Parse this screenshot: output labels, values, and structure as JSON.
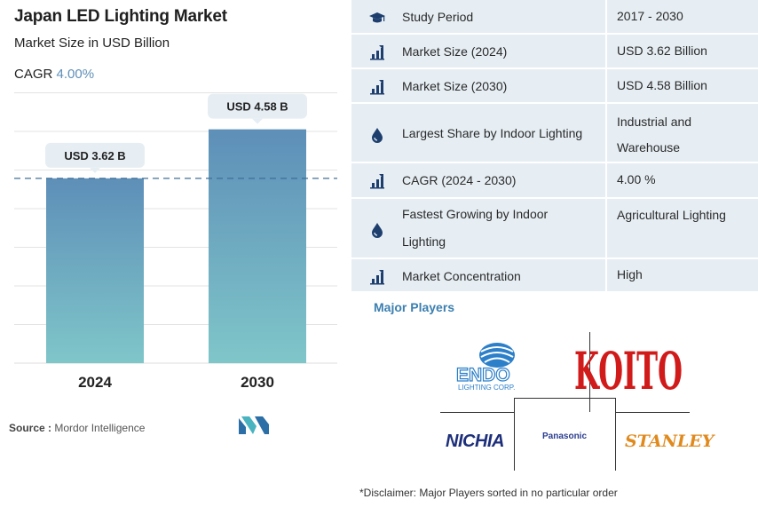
{
  "header": {
    "title": "Japan LED Lighting Market",
    "subtitle": "Market Size in USD Billion",
    "cagr_label": "CAGR ",
    "cagr_value": "4.00%"
  },
  "chart_data": {
    "type": "bar",
    "categories": [
      "2024",
      "2030"
    ],
    "values": [
      3.62,
      4.58
    ],
    "data_labels": [
      "USD 3.62 B",
      "USD 4.58 B"
    ],
    "title": "Japan LED Lighting Market",
    "subtitle": "Market Size in USD Billion",
    "xlabel": "",
    "ylabel": "",
    "ylim": [
      0,
      5.2
    ],
    "reference_line": 3.62,
    "grid": true,
    "colors": {
      "bar_top": "#5e8fb8",
      "bar_bottom": "#7fc6c9",
      "reference": "#3f6f95",
      "label_bg": "#e6eef4"
    }
  },
  "source": {
    "label": "Source :",
    "text": "Mordor Intelligence"
  },
  "table": {
    "rows": [
      {
        "icon": "graduation-cap-icon",
        "label": "Study Period",
        "value": "2017 - 2030"
      },
      {
        "icon": "bar-chart-icon",
        "label": "Market Size (2024)",
        "value": "USD 3.62 Billion"
      },
      {
        "icon": "bar-chart-icon",
        "label": "Market Size (2030)",
        "value": "USD 4.58 Billion"
      },
      {
        "icon": "drop-icon",
        "label": "Largest Share by Indoor Lighting",
        "value": "Industrial and Warehouse"
      },
      {
        "icon": "bar-chart-icon",
        "label": "CAGR (2024 - 2030)",
        "value": "4.00 %"
      },
      {
        "icon": "drop-icon",
        "label": "Fastest Growing by Indoor Lighting",
        "value": "Agricultural Lighting"
      },
      {
        "icon": "bar-chart-icon",
        "label": "Market Concentration",
        "value": "High"
      }
    ]
  },
  "players": {
    "heading": "Major Players",
    "endo_name": "ENDO",
    "endo_sub": "LIGHTING CORP.",
    "koito": "KOITO",
    "panasonic": "Panasonic",
    "nichia": "NICHIA",
    "stanley": "STANLEY"
  },
  "disclaimer": "*Disclaimer: Major Players sorted in no particular order",
  "colors": {
    "accent": "#3b7fb0",
    "table_bg": "#e6eef4"
  }
}
